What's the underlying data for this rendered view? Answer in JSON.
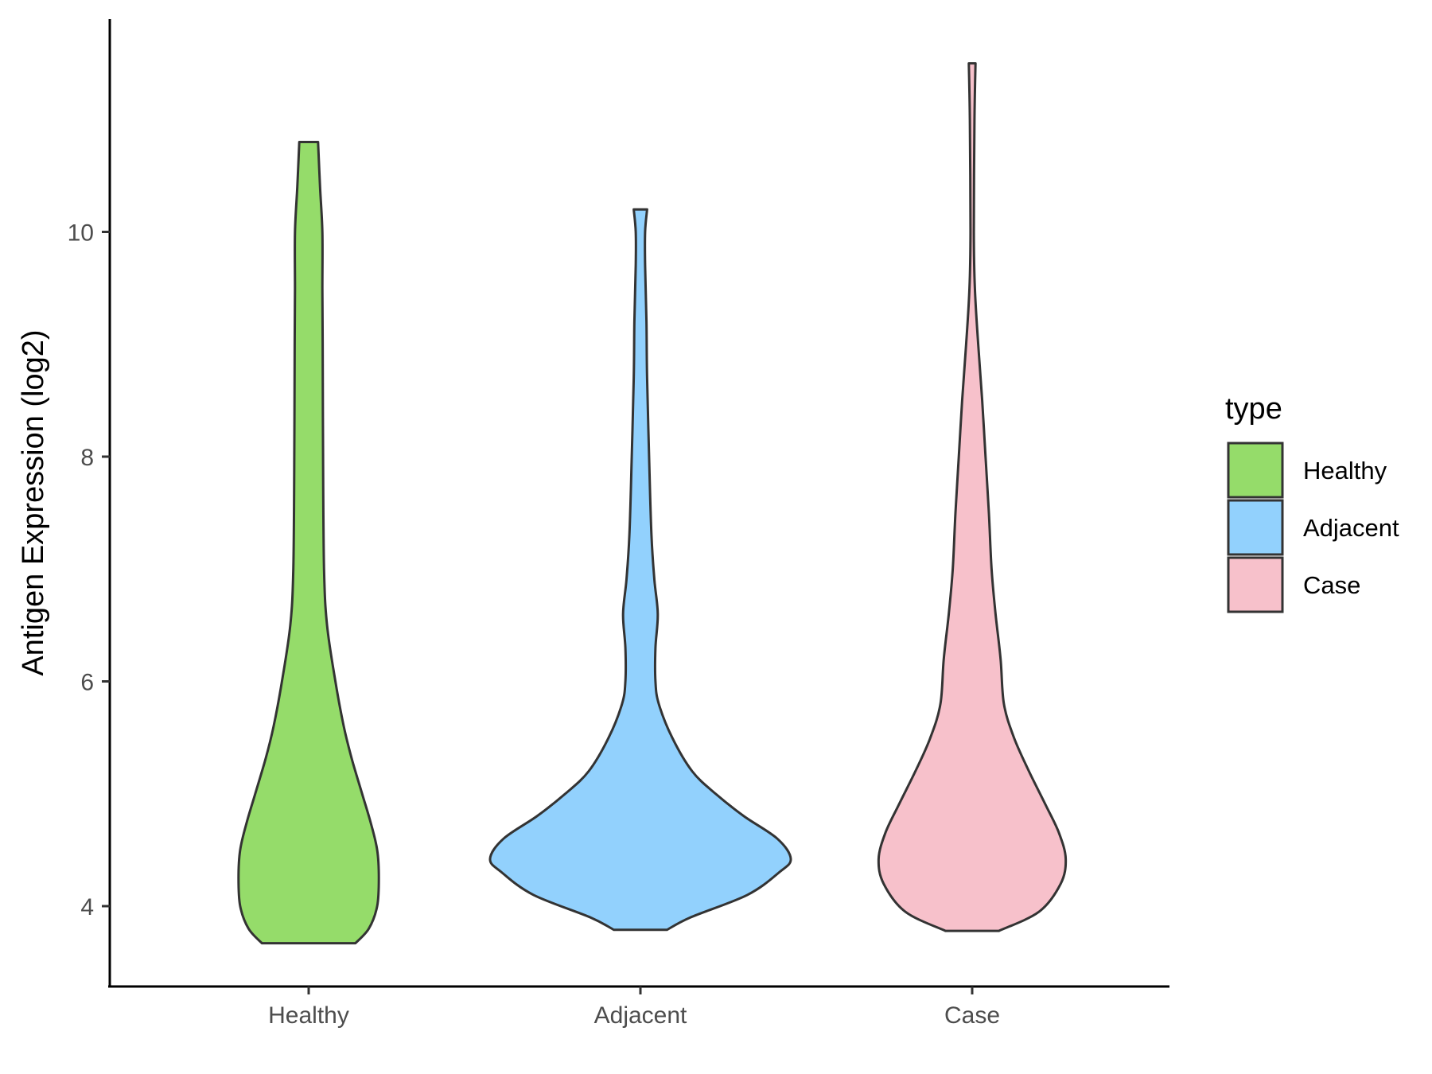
{
  "chart_data": {
    "type": "violin",
    "ylabel": "Antigen Expression (log2)",
    "xlabel": "",
    "ylim": [
      3.35,
      12.0
    ],
    "yticks": [
      4,
      6,
      8,
      10
    ],
    "categories": [
      "Healthy",
      "Adjacent",
      "Case"
    ],
    "legend": {
      "title": "type",
      "position": "right",
      "entries": [
        "Healthy",
        "Adjacent",
        "Case"
      ]
    },
    "grid": false,
    "series": [
      {
        "name": "Healthy",
        "color": "#95dc6a",
        "min": 3.67,
        "max": 10.8,
        "density_half_width": [
          [
            3.67,
            0.14
          ],
          [
            3.8,
            0.18
          ],
          [
            4.0,
            0.205
          ],
          [
            4.25,
            0.21
          ],
          [
            4.5,
            0.205
          ],
          [
            4.75,
            0.185
          ],
          [
            5.0,
            0.16
          ],
          [
            5.3,
            0.13
          ],
          [
            5.6,
            0.105
          ],
          [
            6.0,
            0.08
          ],
          [
            6.5,
            0.055
          ],
          [
            7.0,
            0.046
          ],
          [
            8.0,
            0.043
          ],
          [
            9.0,
            0.042
          ],
          [
            9.5,
            0.041
          ],
          [
            10.0,
            0.041
          ],
          [
            10.4,
            0.034
          ],
          [
            10.8,
            0.028
          ]
        ]
      },
      {
        "name": "Adjacent",
        "color": "#92d1fd",
        "min": 3.79,
        "max": 10.2,
        "density_half_width": [
          [
            3.79,
            0.08
          ],
          [
            3.9,
            0.15
          ],
          [
            4.1,
            0.32
          ],
          [
            4.3,
            0.415
          ],
          [
            4.42,
            0.45
          ],
          [
            4.6,
            0.41
          ],
          [
            4.8,
            0.31
          ],
          [
            5.0,
            0.225
          ],
          [
            5.2,
            0.155
          ],
          [
            5.5,
            0.095
          ],
          [
            5.8,
            0.055
          ],
          [
            6.0,
            0.045
          ],
          [
            6.3,
            0.045
          ],
          [
            6.6,
            0.052
          ],
          [
            6.9,
            0.042
          ],
          [
            7.3,
            0.033
          ],
          [
            8.0,
            0.026
          ],
          [
            8.7,
            0.02
          ],
          [
            9.2,
            0.018
          ],
          [
            9.7,
            0.014
          ],
          [
            10.0,
            0.014
          ],
          [
            10.2,
            0.02
          ]
        ]
      },
      {
        "name": "Case",
        "color": "#f7c1cb",
        "min": 3.78,
        "max": 11.5,
        "density_half_width": [
          [
            3.78,
            0.08
          ],
          [
            3.95,
            0.2
          ],
          [
            4.2,
            0.265
          ],
          [
            4.42,
            0.28
          ],
          [
            4.65,
            0.26
          ],
          [
            4.9,
            0.22
          ],
          [
            5.2,
            0.17
          ],
          [
            5.5,
            0.125
          ],
          [
            5.8,
            0.095
          ],
          [
            6.2,
            0.085
          ],
          [
            6.6,
            0.07
          ],
          [
            7.0,
            0.058
          ],
          [
            7.5,
            0.05
          ],
          [
            8.0,
            0.04
          ],
          [
            8.5,
            0.03
          ],
          [
            9.0,
            0.018
          ],
          [
            9.5,
            0.008
          ],
          [
            10.0,
            0.005
          ],
          [
            11.0,
            0.007
          ],
          [
            11.5,
            0.01
          ]
        ]
      }
    ]
  }
}
